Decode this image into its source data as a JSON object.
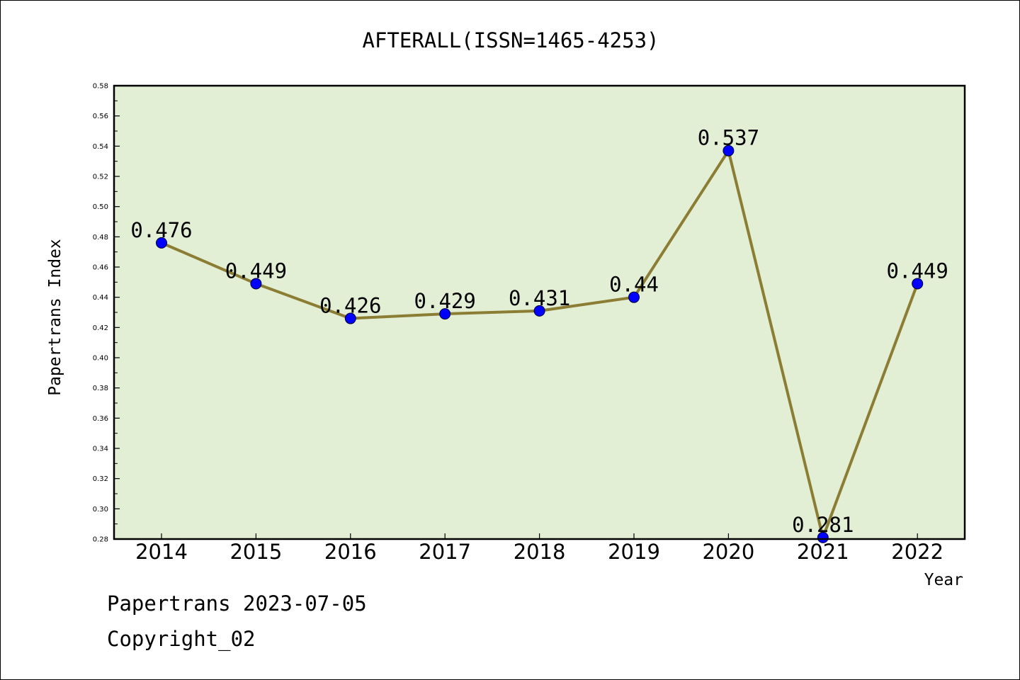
{
  "chart_data": {
    "type": "line",
    "title": "AFTERALL(ISSN=1465-4253)",
    "xlabel": "Year",
    "ylabel": "Papertrans Index",
    "categories": [
      "2014",
      "2015",
      "2016",
      "2017",
      "2018",
      "2019",
      "2020",
      "2021",
      "2022"
    ],
    "values": [
      0.476,
      0.449,
      0.426,
      0.429,
      0.431,
      0.44,
      0.537,
      0.281,
      0.449
    ],
    "data_labels": [
      "0.476",
      "0.449",
      "0.426",
      "0.429",
      "0.431",
      "0.44",
      "0.537",
      "0.281",
      "0.449"
    ],
    "ylim": [
      0.28,
      0.58
    ],
    "yticks": [
      "0.28",
      "0.30",
      "0.32",
      "0.34",
      "0.36",
      "0.38",
      "0.40",
      "0.42",
      "0.44",
      "0.46",
      "0.48",
      "0.50",
      "0.52",
      "0.54",
      "0.56",
      "0.58"
    ],
    "grid": false,
    "colors": {
      "plot_background": "#e2efd4",
      "line": "#8b7d33",
      "marker": "#0000ff"
    }
  },
  "footer": {
    "date_line": "Papertrans 2023-07-05",
    "copyright": "Copyright_02"
  }
}
